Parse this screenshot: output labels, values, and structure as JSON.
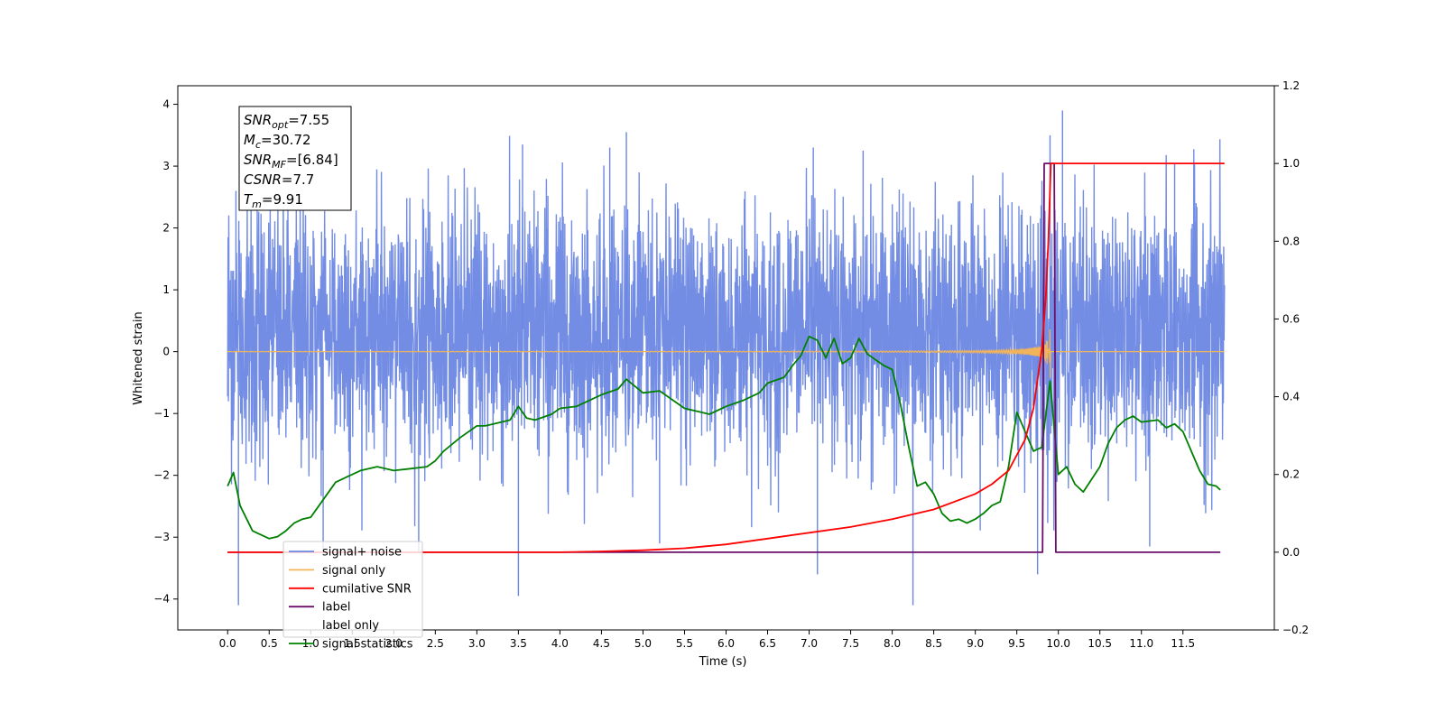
{
  "chart_data": {
    "type": "line",
    "title": "",
    "xlabel": "Time (s)",
    "ylabel_left": "Whitened strain",
    "ylabel_right": "",
    "xlim": [
      -0.6,
      12.6
    ],
    "ylim_left": [
      -4.5,
      4.3
    ],
    "ylim_right": [
      -0.2,
      1.2
    ],
    "grid": false,
    "legend_placement": "lower-left",
    "x_ticks": [
      0.0,
      0.5,
      1.0,
      1.5,
      2.0,
      2.5,
      3.0,
      3.5,
      4.0,
      4.5,
      5.0,
      5.5,
      6.0,
      6.5,
      7.0,
      7.5,
      8.0,
      8.5,
      9.0,
      9.5,
      10.0,
      10.5,
      11.0,
      11.5
    ],
    "x_tick_labels": [
      "0.0",
      "0.5",
      "1.0",
      "1.5",
      "2.0",
      "2.5",
      "3.0",
      "3.5",
      "4.0",
      "4.5",
      "5.0",
      "5.5",
      "6.0",
      "6.5",
      "7.0",
      "7.5",
      "8.0",
      "8.5",
      "9.0",
      "9.5",
      "10.0",
      "10.5",
      "11.0",
      "11.5"
    ],
    "y_left_ticks": [
      -4,
      -3,
      -2,
      -1,
      0,
      1,
      2,
      3,
      4
    ],
    "y_left_tick_labels": [
      "−4",
      "−3",
      "−2",
      "−1",
      "0",
      "1",
      "2",
      "3",
      "4"
    ],
    "y_right_ticks": [
      -0.2,
      0.0,
      0.2,
      0.4,
      0.6,
      0.8,
      1.0,
      1.2
    ],
    "y_right_tick_labels": [
      "−0.2",
      "0.0",
      "0.2",
      "0.4",
      "0.6",
      "0.8",
      "1.0",
      "1.2"
    ],
    "series": [
      {
        "name": "signal+ noise",
        "axis": "left",
        "color": "#6b87e3",
        "x_range": [
          0.0,
          12.0
        ],
        "typical_range": [
          -1.9,
          2.5
        ],
        "spikes": [
          {
            "x": 0.13,
            "y": -4.1
          },
          {
            "x": 0.1,
            "y": 2.6
          },
          {
            "x": 1.15,
            "y": -3.3
          },
          {
            "x": 2.3,
            "y": -3.25
          },
          {
            "x": 3.5,
            "y": -3.95
          },
          {
            "x": 3.55,
            "y": 3.35
          },
          {
            "x": 4.6,
            "y": 3.3
          },
          {
            "x": 4.8,
            "y": 3.55
          },
          {
            "x": 5.2,
            "y": -3.1
          },
          {
            "x": 7.05,
            "y": 3.3
          },
          {
            "x": 7.1,
            "y": -3.6
          },
          {
            "x": 7.65,
            "y": 3.25
          },
          {
            "x": 8.25,
            "y": -4.1
          },
          {
            "x": 9.75,
            "y": -3.6
          },
          {
            "x": 9.9,
            "y": 3.5
          },
          {
            "x": 10.05,
            "y": 3.9
          },
          {
            "x": 11.1,
            "y": -3.15
          },
          {
            "x": 11.4,
            "y": 3.05
          }
        ]
      },
      {
        "name": "signal only",
        "axis": "left",
        "color": "#f2b45a",
        "x_range": [
          0.0,
          12.0
        ],
        "baseline": 0,
        "chirp_merger_time": 9.91,
        "peak_amplitude": 0.6
      },
      {
        "name": "cumilative SNR",
        "axis": "right",
        "color": "#ff0000",
        "x": [
          0.0,
          4.0,
          4.5,
          5.0,
          5.5,
          6.0,
          6.5,
          7.0,
          7.5,
          8.0,
          8.5,
          9.0,
          9.2,
          9.4,
          9.6,
          9.7,
          9.8,
          9.85,
          9.88,
          9.91,
          10.0,
          12.0
        ],
        "values": [
          0.0,
          0.0,
          0.002,
          0.005,
          0.01,
          0.02,
          0.035,
          0.05,
          0.065,
          0.085,
          0.11,
          0.15,
          0.175,
          0.21,
          0.29,
          0.37,
          0.52,
          0.66,
          0.8,
          1.0,
          1.0,
          1.0
        ]
      },
      {
        "name": "label",
        "axis": "right",
        "color": "#6a0f6a",
        "x": [
          0.0,
          9.81,
          9.83,
          9.95,
          9.97,
          11.95
        ],
        "values": [
          0.0,
          0.0,
          1.0,
          1.0,
          0.0,
          0.0
        ]
      },
      {
        "name": "label only",
        "axis": "right",
        "color": "#6a0f6a",
        "hidden": true
      },
      {
        "name": "signal statistics",
        "axis": "right",
        "color": "#008000",
        "x": [
          0.0,
          0.07,
          0.15,
          0.3,
          0.5,
          0.6,
          0.7,
          0.8,
          0.9,
          1.0,
          1.1,
          1.3,
          1.5,
          1.6,
          1.8,
          2.0,
          2.2,
          2.4,
          2.5,
          2.6,
          2.8,
          3.0,
          3.1,
          3.2,
          3.4,
          3.5,
          3.6,
          3.7,
          3.9,
          4.0,
          4.2,
          4.5,
          4.7,
          4.8,
          5.0,
          5.2,
          5.4,
          5.5,
          5.7,
          5.8,
          6.0,
          6.2,
          6.4,
          6.5,
          6.7,
          6.8,
          6.9,
          7.0,
          7.1,
          7.2,
          7.3,
          7.4,
          7.5,
          7.6,
          7.7,
          7.9,
          8.0,
          8.1,
          8.2,
          8.3,
          8.4,
          8.5,
          8.6,
          8.7,
          8.8,
          8.9,
          9.0,
          9.1,
          9.2,
          9.3,
          9.4,
          9.5,
          9.6,
          9.7,
          9.8,
          9.9,
          10.0,
          10.1,
          10.2,
          10.3,
          10.5,
          10.6,
          10.7,
          10.8,
          10.9,
          11.0,
          11.2,
          11.3,
          11.4,
          11.5,
          11.6,
          11.7,
          11.8,
          11.9,
          11.95
        ],
        "values": [
          0.17,
          0.205,
          0.12,
          0.055,
          0.035,
          0.04,
          0.055,
          0.075,
          0.085,
          0.09,
          0.12,
          0.18,
          0.2,
          0.21,
          0.22,
          0.21,
          0.215,
          0.22,
          0.235,
          0.26,
          0.295,
          0.325,
          0.325,
          0.33,
          0.34,
          0.375,
          0.345,
          0.34,
          0.355,
          0.37,
          0.375,
          0.405,
          0.42,
          0.445,
          0.41,
          0.415,
          0.385,
          0.37,
          0.36,
          0.355,
          0.375,
          0.39,
          0.41,
          0.435,
          0.45,
          0.48,
          0.505,
          0.555,
          0.545,
          0.5,
          0.55,
          0.485,
          0.5,
          0.55,
          0.51,
          0.48,
          0.47,
          0.38,
          0.27,
          0.17,
          0.18,
          0.15,
          0.1,
          0.08,
          0.085,
          0.075,
          0.085,
          0.1,
          0.12,
          0.13,
          0.22,
          0.36,
          0.31,
          0.26,
          0.27,
          0.44,
          0.2,
          0.22,
          0.175,
          0.155,
          0.22,
          0.28,
          0.32,
          0.34,
          0.35,
          0.335,
          0.34,
          0.32,
          0.33,
          0.31,
          0.26,
          0.21,
          0.175,
          0.17,
          0.16
        ]
      }
    ],
    "legend": [
      "signal+ noise",
      "signal only",
      "cumilative SNR",
      "label",
      "label only",
      "signal statistics"
    ],
    "annotation": {
      "lines": [
        {
          "base": "SNR",
          "sub": "opt",
          "rest": "=7.55"
        },
        {
          "base": "M",
          "sub": "c",
          "rest": "=30.72"
        },
        {
          "base": "SNR",
          "sub": "MF",
          "rest": "=[6.84]"
        },
        {
          "base": "CSNR",
          "sub": "",
          "rest": "=7.7"
        },
        {
          "base": "T",
          "sub": "m",
          "rest": "=9.91"
        }
      ]
    }
  }
}
